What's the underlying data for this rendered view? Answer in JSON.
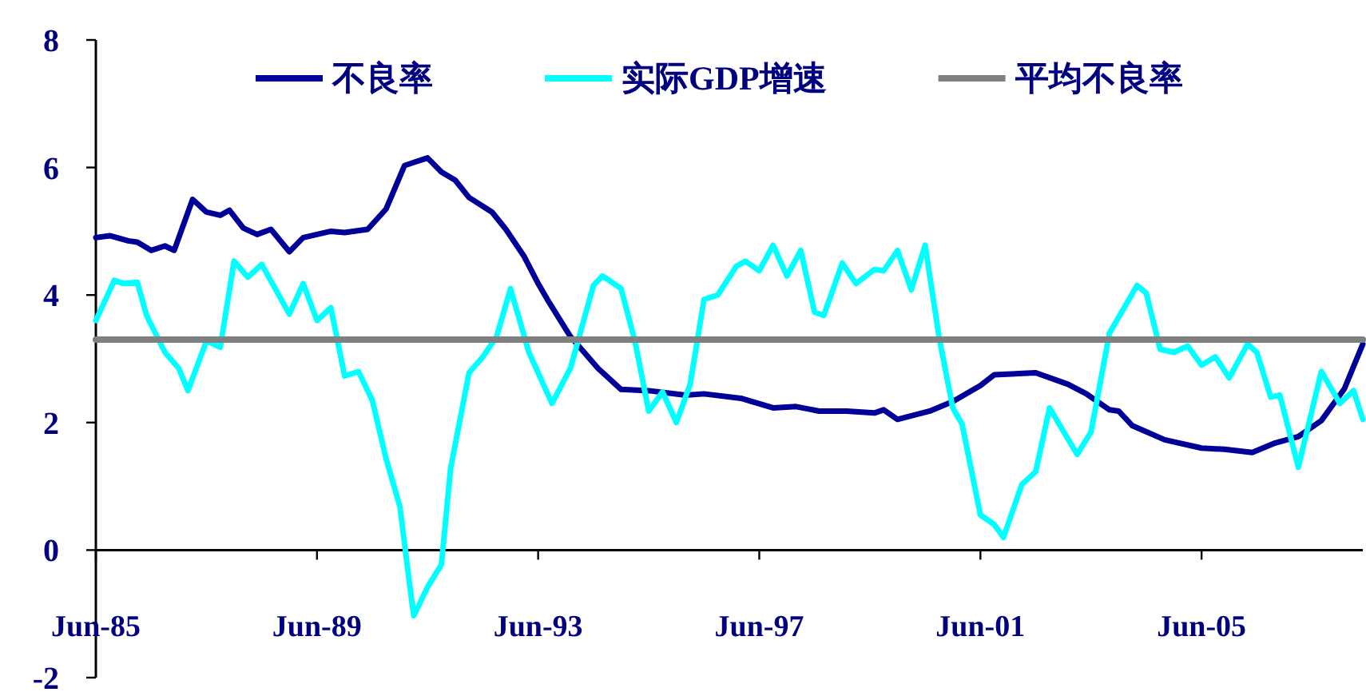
{
  "chart_data": {
    "type": "line",
    "xlim": [
      "1985-06",
      "2008-05"
    ],
    "xticks": [
      {
        "value": "1985-06",
        "label": "Jun-85"
      },
      {
        "value": "1989-06",
        "label": "Jun-89"
      },
      {
        "value": "1993-06",
        "label": "Jun-93"
      },
      {
        "value": "1997-06",
        "label": "Jun-97"
      },
      {
        "value": "2001-06",
        "label": "Jun-01"
      },
      {
        "value": "2005-06",
        "label": "Jun-05"
      }
    ],
    "ylim": [
      -2,
      8
    ],
    "yticks": [
      -2,
      0,
      2,
      4,
      6,
      8
    ],
    "grid": false,
    "legend": "top",
    "series": [
      {
        "name": "不良率",
        "color": "#000099",
        "x": [
          "1985-06",
          "1985-09",
          "1986-01",
          "1986-03",
          "1986-06",
          "1986-09",
          "1986-11",
          "1987-03",
          "1987-06",
          "1987-09",
          "1987-11",
          "1988-02",
          "1988-05",
          "1988-08",
          "1988-12",
          "1989-03",
          "1989-09",
          "1989-12",
          "1990-05",
          "1990-09",
          "1991-01",
          "1991-03",
          "1991-06",
          "1991-09",
          "1991-12",
          "1992-03",
          "1992-08",
          "1992-11",
          "1993-03",
          "1993-06",
          "1993-08",
          "1994-01",
          "1994-07",
          "1994-12",
          "1995-06",
          "1996-02",
          "1996-06",
          "1997-02",
          "1997-09",
          "1998-02",
          "1998-07",
          "1999-01",
          "1999-07",
          "1999-09",
          "1999-12",
          "2000-07",
          "2000-12",
          "2001-06",
          "2001-09",
          "2002-06",
          "2003-01",
          "2003-05",
          "2003-10",
          "2003-12",
          "2004-03",
          "2004-10",
          "2005-06",
          "2005-11",
          "2006-05",
          "2006-10",
          "2007-03",
          "2007-08",
          "2008-01",
          "2008-05"
        ],
        "values": [
          4.9,
          4.93,
          4.85,
          4.83,
          4.7,
          4.77,
          4.7,
          5.5,
          5.3,
          5.25,
          5.33,
          5.05,
          4.95,
          5.03,
          4.68,
          4.9,
          5.0,
          4.98,
          5.03,
          5.35,
          6.03,
          6.08,
          6.15,
          5.93,
          5.8,
          5.53,
          5.3,
          5.03,
          4.6,
          4.18,
          3.93,
          3.35,
          2.85,
          2.52,
          2.5,
          2.43,
          2.45,
          2.38,
          2.23,
          2.25,
          2.18,
          2.18,
          2.15,
          2.2,
          2.05,
          2.18,
          2.33,
          2.58,
          2.75,
          2.78,
          2.6,
          2.45,
          2.2,
          2.18,
          1.95,
          1.73,
          1.6,
          1.58,
          1.53,
          1.68,
          1.78,
          2.03,
          2.53,
          3.23
        ]
      },
      {
        "name": "实际GDP增速",
        "color": "#00ffff",
        "x": [
          "1985-06",
          "1985-10",
          "1985-12",
          "1986-03",
          "1986-05",
          "1986-09",
          "1986-12",
          "1987-02",
          "1987-06",
          "1987-09",
          "1987-12",
          "1988-03",
          "1988-06",
          "1988-12",
          "1989-03",
          "1989-06",
          "1989-09",
          "1989-12",
          "1990-03",
          "1990-06",
          "1990-09",
          "1990-12",
          "1991-02",
          "1991-03",
          "1991-06",
          "1991-09",
          "1991-11",
          "1992-03",
          "1992-06",
          "1992-09",
          "1992-12",
          "1993-04",
          "1993-09",
          "1994-01",
          "1994-06",
          "1994-08",
          "1994-12",
          "1995-03",
          "1995-06",
          "1995-09",
          "1995-12",
          "1996-03",
          "1996-06",
          "1996-09",
          "1997-01",
          "1997-03",
          "1997-06",
          "1997-09",
          "1997-12",
          "1998-03",
          "1998-06",
          "1998-08",
          "1998-12",
          "1999-03",
          "1999-07",
          "1999-09",
          "1999-12",
          "2000-03",
          "2000-06",
          "2000-09",
          "2000-12",
          "2001-02",
          "2001-06",
          "2001-09",
          "2001-11",
          "2002-03",
          "2002-06",
          "2002-09",
          "2003-03",
          "2003-06",
          "2003-10",
          "2004-04",
          "2004-06",
          "2004-09",
          "2004-12",
          "2005-03",
          "2005-06",
          "2005-09",
          "2005-12",
          "2006-04",
          "2006-06",
          "2006-09",
          "2006-11",
          "2007-03",
          "2007-08",
          "2007-12",
          "2008-03",
          "2008-05"
        ],
        "values": [
          3.6,
          4.23,
          4.18,
          4.2,
          3.68,
          3.1,
          2.85,
          2.5,
          3.28,
          3.18,
          4.53,
          4.28,
          4.48,
          3.7,
          4.18,
          3.6,
          3.8,
          2.73,
          2.8,
          2.35,
          1.43,
          0.68,
          -0.48,
          -1.03,
          -0.58,
          -0.23,
          1.28,
          2.78,
          3.03,
          3.35,
          4.1,
          3.1,
          2.3,
          2.85,
          4.15,
          4.3,
          4.1,
          3.28,
          2.18,
          2.48,
          2.0,
          2.6,
          3.93,
          4.0,
          4.45,
          4.53,
          4.38,
          4.78,
          4.3,
          4.7,
          3.73,
          3.68,
          4.5,
          4.18,
          4.4,
          4.38,
          4.7,
          4.08,
          4.78,
          3.35,
          2.23,
          1.98,
          0.55,
          0.4,
          0.2,
          1.03,
          1.23,
          2.23,
          1.5,
          1.85,
          3.4,
          4.15,
          4.03,
          3.15,
          3.1,
          3.2,
          2.9,
          3.03,
          2.7,
          3.23,
          3.1,
          2.4,
          2.43,
          1.3,
          2.8,
          2.3,
          2.5,
          2.05
        ]
      },
      {
        "name": "平均不良率",
        "color": "#808080",
        "x": [
          "1985-06",
          "2008-05"
        ],
        "values": [
          3.3,
          3.3
        ]
      }
    ]
  }
}
